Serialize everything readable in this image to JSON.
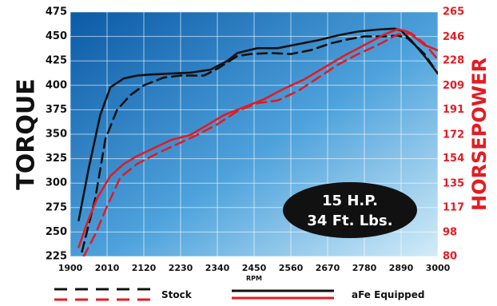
{
  "chart_data": {
    "type": "line",
    "xlabel": "RPM",
    "y_left_label": "TORQUE",
    "y_right_label": "HORSEPOWER",
    "x_ticks": [
      1900,
      2010,
      2120,
      2230,
      2340,
      2450,
      2560,
      2670,
      2780,
      2890,
      3000
    ],
    "x_range": [
      1900,
      3000
    ],
    "y_left_ticks": [
      225,
      250,
      275,
      300,
      325,
      350,
      375,
      400,
      425,
      450,
      475
    ],
    "y_left_range": [
      225,
      475
    ],
    "y_right_ticks": [
      80,
      98,
      117,
      135,
      154,
      172,
      191,
      209,
      228,
      246,
      265
    ],
    "y_right_range": [
      80,
      265
    ],
    "grid": true,
    "colors": {
      "torque": "#111111",
      "horsepower": "#e31b23",
      "right_axis_text": "#e31b23",
      "panel_top": "#0a5aa5",
      "panel_bottom": "#c9e6f5",
      "bubble": "#111111",
      "bubble_text": "#ffffff"
    },
    "series": [
      {
        "name": "Stock",
        "axis": "left",
        "metric": "torque",
        "style": "dashed",
        "x": [
          1935,
          1975,
          2005,
          2040,
          2080,
          2120,
          2180,
          2230,
          2300,
          2340,
          2400,
          2440,
          2500,
          2560,
          2620,
          2680,
          2730,
          2780,
          2840,
          2880,
          2910,
          2960,
          3000
        ],
        "values": [
          230,
          285,
          345,
          375,
          390,
          400,
          408,
          410,
          410,
          417,
          430,
          432,
          433,
          432,
          436,
          443,
          447,
          450,
          450,
          451,
          448,
          432,
          412
        ]
      },
      {
        "name": "aFe Equipped",
        "axis": "left",
        "metric": "torque",
        "style": "solid",
        "x": [
          1925,
          1955,
          1990,
          2020,
          2060,
          2100,
          2140,
          2200,
          2260,
          2320,
          2370,
          2400,
          2460,
          2520,
          2580,
          2640,
          2700,
          2760,
          2820,
          2870,
          2890,
          2920,
          2960,
          3000
        ],
        "values": [
          262,
          315,
          370,
          398,
          407,
          410,
          411,
          412,
          413,
          416,
          425,
          433,
          438,
          438,
          442,
          446,
          451,
          455,
          457,
          458,
          456,
          446,
          430,
          412
        ]
      },
      {
        "name": "Stock",
        "axis": "right",
        "metric": "horsepower",
        "style": "dashed",
        "x": [
          1940,
          1975,
          2010,
          2050,
          2100,
          2160,
          2220,
          2280,
          2340,
          2400,
          2460,
          2520,
          2580,
          2640,
          2700,
          2760,
          2820,
          2880,
          2920,
          2960,
          3000
        ],
        "values": [
          80,
          97,
          118,
          140,
          150,
          158,
          165,
          172,
          180,
          190,
          196,
          198,
          205,
          215,
          225,
          233,
          240,
          248,
          249,
          241,
          229
        ]
      },
      {
        "name": "aFe Equipped",
        "axis": "right",
        "metric": "horsepower",
        "style": "solid",
        "x": [
          1925,
          1950,
          1980,
          2020,
          2060,
          2100,
          2150,
          2200,
          2260,
          2300,
          2360,
          2420,
          2480,
          2540,
          2600,
          2660,
          2720,
          2780,
          2840,
          2880,
          2910,
          2960,
          3000
        ],
        "values": [
          87,
          105,
          124,
          141,
          150,
          156,
          162,
          168,
          172,
          178,
          187,
          193,
          199,
          207,
          214,
          223,
          232,
          240,
          248,
          252,
          250,
          240,
          236
        ]
      }
    ],
    "annotation": [
      "15 H.P.",
      "34 Ft. Lbs."
    ]
  },
  "legend": {
    "stock": "Stock",
    "afe": "aFe Equipped"
  }
}
